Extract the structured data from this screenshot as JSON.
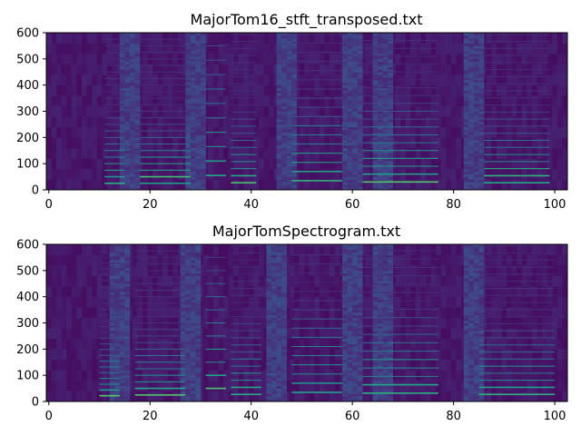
{
  "chart_data": [
    {
      "type": "heatmap",
      "title": "MajorTom16_stft_transposed.txt",
      "xlabel": "",
      "ylabel": "",
      "xlim": [
        -0.5,
        102.5
      ],
      "ylim": [
        0,
        600
      ],
      "x_ticks": [
        0,
        20,
        40,
        60,
        80,
        100
      ],
      "y_ticks": [
        0,
        100,
        200,
        300,
        400,
        500,
        600
      ],
      "x_tick_labels": [
        "0",
        "20",
        "40",
        "60",
        "80",
        "100"
      ],
      "y_tick_labels": [
        "0",
        "100",
        "200",
        "300",
        "400",
        "500",
        "600"
      ],
      "colormap": "viridis",
      "background_color": "#440154",
      "grid": false,
      "features": {
        "bright_vertical_bands_x": [
          16,
          29,
          47,
          60,
          66,
          84
        ],
        "harmonic_segments": [
          {
            "x": [
              11,
              15
            ],
            "fundamental": 25
          },
          {
            "x": [
              18,
              28
            ],
            "fundamental": 25
          },
          {
            "x": [
              31,
              35
            ],
            "fundamental": 55
          },
          {
            "x": [
              36,
              41
            ],
            "fundamental": 27
          },
          {
            "x": [
              48,
              58
            ],
            "fundamental": 35
          },
          {
            "x": [
              62,
              77
            ],
            "fundamental": 30
          },
          {
            "x": [
              86,
              99
            ],
            "fundamental": 27
          }
        ]
      }
    },
    {
      "type": "heatmap",
      "title": "MajorTomSpectrogram.txt",
      "xlabel": "",
      "ylabel": "",
      "xlim": [
        -0.5,
        102.5
      ],
      "ylim": [
        0,
        600
      ],
      "x_ticks": [
        0,
        20,
        40,
        60,
        80,
        100
      ],
      "y_ticks": [
        0,
        100,
        200,
        300,
        400,
        500,
        600
      ],
      "x_tick_labels": [
        "0",
        "20",
        "40",
        "60",
        "80",
        "100"
      ],
      "y_tick_labels": [
        "0",
        "100",
        "200",
        "300",
        "400",
        "500",
        "600"
      ],
      "colormap": "viridis",
      "background_color": "#440154",
      "grid": false,
      "features": {
        "bright_vertical_bands_x": [
          14,
          28,
          45,
          60,
          66,
          84
        ],
        "harmonic_segments": [
          {
            "x": [
              10,
              14
            ],
            "fundamental": 22
          },
          {
            "x": [
              17,
              27
            ],
            "fundamental": 25
          },
          {
            "x": [
              31,
              35
            ],
            "fundamental": 50
          },
          {
            "x": [
              36,
              42
            ],
            "fundamental": 27
          },
          {
            "x": [
              48,
              58
            ],
            "fundamental": 35
          },
          {
            "x": [
              62,
              77
            ],
            "fundamental": 32
          },
          {
            "x": [
              85,
              100
            ],
            "fundamental": 27
          }
        ]
      }
    }
  ]
}
